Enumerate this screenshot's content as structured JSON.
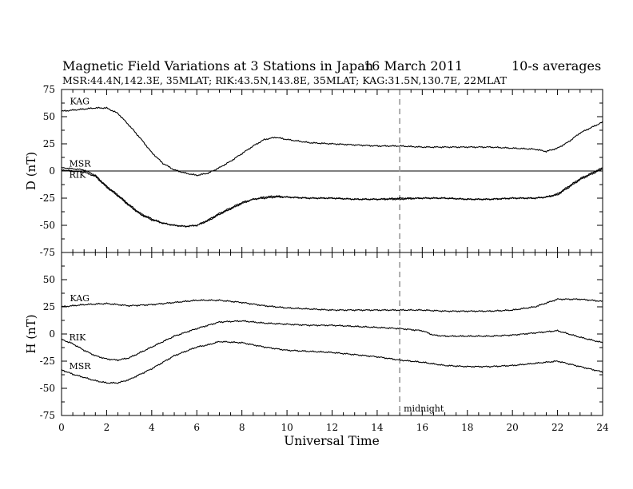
{
  "header": {
    "title": "Magnetic Field Variations at 3 Stations in Japan",
    "date": "16 March   2011",
    "averaging": "10-s averages",
    "subtitle": "MSR:44.4N,142.3E, 35MLAT;  RIK:43.5N,143.8E, 35MLAT;  KAG:31.5N,130.7E, 22MLAT"
  },
  "chart_data": [
    {
      "panel": "D",
      "type": "line",
      "ylabel": "D (nT)",
      "xlabel": "Universal Time",
      "xlim": [
        0,
        24
      ],
      "ylim": [
        -75,
        75
      ],
      "xticks": [
        0,
        2,
        4,
        6,
        8,
        10,
        12,
        14,
        16,
        18,
        20,
        22,
        24
      ],
      "yticks": [
        75,
        50,
        25,
        0,
        -25,
        -50,
        -75
      ],
      "zero_line": true,
      "series": [
        {
          "name": "KAG",
          "x": [
            0,
            0.5,
            1,
            1.5,
            2,
            2.5,
            3,
            3.5,
            4,
            4.5,
            5,
            5.5,
            6,
            6.5,
            7,
            7.5,
            8,
            8.5,
            9,
            9.5,
            10,
            11,
            12,
            13,
            14,
            15,
            16,
            17,
            18,
            19,
            20,
            21,
            21.5,
            22,
            22.5,
            23,
            23.5,
            24
          ],
          "y": [
            55,
            56,
            57,
            58,
            58,
            53,
            42,
            30,
            17,
            7,
            1,
            -2,
            -4,
            -2,
            3,
            9,
            16,
            23,
            29,
            31,
            29,
            26,
            25,
            24,
            23,
            23,
            22,
            22,
            22,
            22,
            21,
            20,
            18,
            21,
            27,
            35,
            40,
            45
          ]
        },
        {
          "name": "MSR",
          "x": [
            0,
            0.5,
            1,
            1.5,
            2,
            2.5,
            3,
            3.5,
            4,
            4.5,
            5,
            5.5,
            6,
            6.5,
            7,
            7.5,
            8,
            8.5,
            9,
            9.5,
            10,
            11,
            12,
            13,
            14,
            15,
            16,
            17,
            18,
            19,
            20,
            21,
            21.5,
            22,
            22.5,
            23,
            23.5,
            24
          ],
          "y": [
            3,
            2,
            1,
            -4,
            -14,
            -22,
            -31,
            -39,
            -44,
            -48,
            -50,
            -51,
            -50,
            -45,
            -39,
            -34,
            -29,
            -26,
            -24,
            -23,
            -24,
            -25,
            -25,
            -26,
            -26,
            -25,
            -25,
            -25,
            -26,
            -26,
            -25,
            -25,
            -24,
            -21,
            -14,
            -7,
            -2,
            3
          ]
        },
        {
          "name": "RIK",
          "x": [
            0,
            0.5,
            1,
            1.5,
            2,
            2.5,
            3,
            3.5,
            4,
            4.5,
            5,
            5.5,
            6,
            6.5,
            7,
            7.5,
            8,
            8.5,
            9,
            9.5,
            10,
            11,
            12,
            13,
            14,
            15,
            16,
            17,
            18,
            19,
            20,
            21,
            21.5,
            22,
            22.5,
            23,
            23.5,
            24
          ],
          "y": [
            1,
            0,
            -1,
            -5,
            -15,
            -23,
            -32,
            -40,
            -45,
            -48,
            -50,
            -51,
            -50,
            -46,
            -40,
            -35,
            -30,
            -26,
            -25,
            -24,
            -24,
            -25,
            -25,
            -26,
            -26,
            -26,
            -25,
            -25,
            -26,
            -26,
            -25,
            -25,
            -24,
            -22,
            -15,
            -8,
            -3,
            2
          ]
        }
      ],
      "annotations": [
        {
          "text": "midnight",
          "x": 15,
          "style": "dashed-vertical"
        }
      ]
    },
    {
      "panel": "H",
      "type": "line",
      "ylabel": "H (nT)",
      "xlabel": "Universal Time",
      "xlim": [
        0,
        24
      ],
      "ylim": [
        -75,
        75
      ],
      "xticks": [
        0,
        2,
        4,
        6,
        8,
        10,
        12,
        14,
        16,
        18,
        20,
        22,
        24
      ],
      "yticks": [
        75,
        50,
        25,
        0,
        -25,
        -50,
        -75
      ],
      "zero_line": false,
      "series": [
        {
          "name": "KAG",
          "x": [
            0,
            1,
            2,
            3,
            4,
            5,
            6,
            7,
            8,
            9,
            10,
            11,
            12,
            13,
            14,
            15,
            16,
            17,
            18,
            19,
            20,
            21,
            22,
            23,
            24
          ],
          "y": [
            25,
            27,
            28,
            26,
            27,
            29,
            31,
            31,
            29,
            26,
            24,
            23,
            22,
            22,
            22,
            22,
            22,
            21,
            21,
            21,
            22,
            25,
            32,
            32,
            30
          ]
        },
        {
          "name": "RIK",
          "x": [
            0,
            0.5,
            1,
            1.5,
            2,
            2.5,
            3,
            4,
            5,
            6,
            7,
            8,
            9,
            10,
            11,
            12,
            13,
            14,
            15,
            16,
            16.5,
            17,
            18,
            19,
            20,
            21,
            22,
            23,
            24
          ],
          "y": [
            -5,
            -9,
            -15,
            -20,
            -23,
            -24,
            -22,
            -12,
            -2,
            5,
            11,
            12,
            10,
            9,
            8,
            8,
            7,
            6,
            5,
            3,
            -1,
            -2,
            -2,
            -2,
            -1,
            1,
            3,
            -3,
            -8
          ]
        },
        {
          "name": "MSR",
          "x": [
            0,
            0.5,
            1,
            1.5,
            2,
            2.5,
            3,
            4,
            5,
            6,
            6.5,
            7,
            8,
            9,
            10,
            11,
            12,
            13,
            14,
            15,
            16,
            17,
            18,
            19,
            20,
            21,
            22,
            23,
            24
          ],
          "y": [
            -33,
            -37,
            -40,
            -43,
            -45,
            -45,
            -42,
            -32,
            -20,
            -12,
            -10,
            -7,
            -8,
            -12,
            -15,
            -16,
            -17,
            -19,
            -21,
            -24,
            -26,
            -29,
            -30,
            -30,
            -29,
            -27,
            -25,
            -30,
            -35
          ]
        }
      ],
      "annotations": [
        {
          "text": "midnight",
          "x": 15,
          "style": "dashed-vertical"
        }
      ]
    }
  ]
}
